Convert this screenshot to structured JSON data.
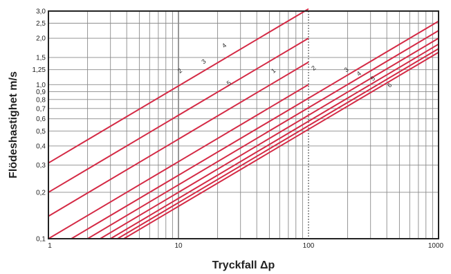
{
  "chart_data": {
    "type": "line",
    "xscale": "log",
    "yscale": "log",
    "xlim": [
      1,
      1000
    ],
    "ylim": [
      0.1,
      3.0
    ],
    "xlabel": "Tryckfall Δp",
    "ylabel": "Flödeshastighet m/s",
    "grid": true,
    "line_color": "#d42a45",
    "x_tick_labels": [
      {
        "value": 1,
        "label": "1"
      },
      {
        "value": 10,
        "label": "10"
      },
      {
        "value": 100,
        "label": "100"
      },
      {
        "value": 1000,
        "label": "1000"
      }
    ],
    "y_tick_labels": [
      {
        "value": 0.1,
        "label": "0,1"
      },
      {
        "value": 0.2,
        "label": "0,2"
      },
      {
        "value": 0.3,
        "label": "0,3"
      },
      {
        "value": 0.4,
        "label": "0,4"
      },
      {
        "value": 0.5,
        "label": "0,5"
      },
      {
        "value": 0.6,
        "label": "0,6"
      },
      {
        "value": 0.7,
        "label": "0,7"
      },
      {
        "value": 0.8,
        "label": "0,8"
      },
      {
        "value": 0.9,
        "label": "0,9"
      },
      {
        "value": 1.0,
        "label": "1,0"
      },
      {
        "value": 1.25,
        "label": "1,25"
      },
      {
        "value": 1.5,
        "label": "1,5"
      },
      {
        "value": 2.0,
        "label": "2,0"
      },
      {
        "value": 2.5,
        "label": "2,5"
      },
      {
        "value": 3.0,
        "label": "3,0"
      }
    ],
    "series": [
      {
        "name": "2",
        "x": [
          1,
          100
        ],
        "y": [
          0.31,
          3.1
        ],
        "label_x": 10.5,
        "label_y": 1.2
      },
      {
        "name": "3",
        "x": [
          1,
          100
        ],
        "y": [
          0.2,
          2.0
        ],
        "label_x": 16,
        "label_y": 1.38
      },
      {
        "name": "4",
        "x": [
          1,
          100
        ],
        "y": [
          0.14,
          1.4
        ],
        "label_x": 23,
        "label_y": 1.75
      },
      {
        "name": "5",
        "x": [
          1,
          100
        ],
        "y": [
          0.1,
          1.0
        ],
        "label_x": 25,
        "label_y": 1.0
      },
      {
        "name": "1",
        "x": [
          1.5,
          1000
        ],
        "y": [
          0.1,
          2.58
        ],
        "label_x": 55,
        "label_y": 1.2
      },
      {
        "name": "2",
        "x": [
          2.0,
          1000
        ],
        "y": [
          0.1,
          2.24
        ],
        "label_x": 112,
        "label_y": 1.25
      },
      {
        "name": "3",
        "x": [
          2.5,
          1000
        ],
        "y": [
          0.1,
          2.0
        ],
        "label_x": 200,
        "label_y": 1.22
      },
      {
        "name": "4",
        "x": [
          3.0,
          1000
        ],
        "y": [
          0.1,
          1.83
        ],
        "label_x": 250,
        "label_y": 1.15
      },
      {
        "name": "5",
        "x": [
          3.4,
          1000
        ],
        "y": [
          0.1,
          1.71
        ],
        "label_x": 320,
        "label_y": 1.07
      },
      {
        "name": "6",
        "x": [
          3.8,
          1000
        ],
        "y": [
          0.1,
          1.62
        ],
        "label_x": 430,
        "label_y": 0.97
      }
    ]
  }
}
